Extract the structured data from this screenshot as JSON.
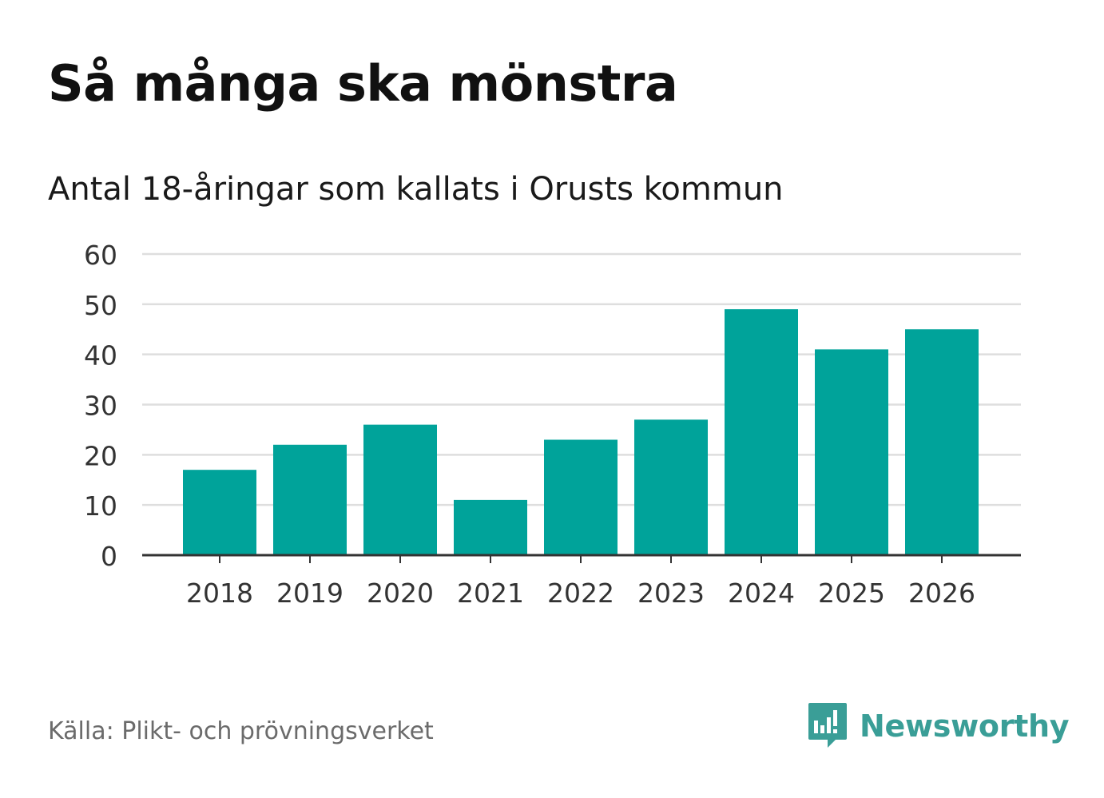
{
  "header": {
    "title": "Så många ska mönstra",
    "subtitle": "Antal 18-åringar som kallats i Orusts kommun"
  },
  "footer": {
    "source": "Källa: Plikt- och prövningsverket",
    "brand": "Newsworthy",
    "brand_icon": "newsworthy-logo-icon"
  },
  "colors": {
    "bar": "#00a39a",
    "grid": "#dedede",
    "axis": "#333333",
    "brand": "#3a9e97"
  },
  "chart_data": {
    "type": "bar",
    "title": "Så många ska mönstra",
    "subtitle": "Antal 18-åringar som kallats i Orusts kommun",
    "categories": [
      "2018",
      "2019",
      "2020",
      "2021",
      "2022",
      "2023",
      "2024",
      "2025",
      "2026"
    ],
    "values": [
      17,
      22,
      26,
      11,
      23,
      27,
      49,
      41,
      45
    ],
    "xlabel": "",
    "ylabel": "",
    "ylim": [
      0,
      60
    ],
    "yticks": [
      0,
      10,
      20,
      30,
      40,
      50,
      60
    ],
    "grid": true,
    "legend": "none"
  }
}
